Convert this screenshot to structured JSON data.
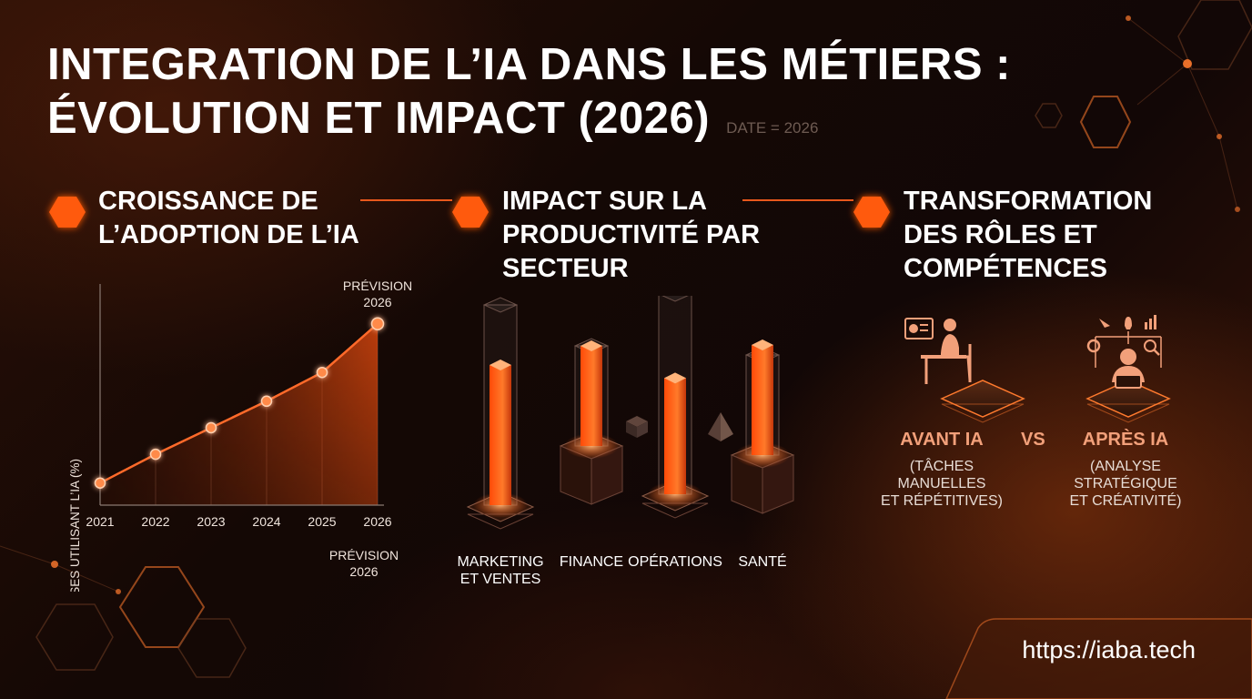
{
  "title": {
    "line1": "INTEGRATION DE L’IA DANS LES MÉTIERS :",
    "line2": "ÉVOLUTION ET IMPACT (2026)",
    "date_label": "DATE = 2026"
  },
  "sections": {
    "adoption": {
      "title_l1": "CROISSANCE DE",
      "title_l2": "L’ADOPTION DE L’IA"
    },
    "productivity": {
      "title_l1": "IMPACT SUR LA",
      "title_l2": "PRODUCTIVITÉ PAR",
      "title_l3": "SECTEUR"
    },
    "roles": {
      "title_l1": "TRANSFORMATION",
      "title_l2": "DES RÔLES ET",
      "title_l3": "COMPÉTENCES"
    }
  },
  "chart_data": [
    {
      "type": "area",
      "ylabel": "ENTREPRISES UTILISANT L’IA (%)",
      "x": [
        "2021",
        "2022",
        "2023",
        "2024",
        "2025",
        "2026"
      ],
      "y": [
        10,
        23,
        35,
        47,
        60,
        82
      ],
      "ylim": [
        0,
        100
      ],
      "annotation_top": {
        "l1": "PRÉVISION",
        "l2": "2026"
      },
      "annotation_bottom": {
        "l1": "PRÉVISION",
        "l2": "2026"
      },
      "grid": "vertical"
    },
    {
      "type": "bar",
      "categories": [
        {
          "l1": "MARKETING",
          "l2": "ET VENTES"
        },
        {
          "l1": "FINANCE",
          "l2": ""
        },
        {
          "l1": "OPÉRATIONS",
          "l2": ""
        },
        {
          "l1": "SANTÉ",
          "l2": ""
        }
      ],
      "values": [
        70,
        50,
        58,
        55
      ],
      "capacity": [
        100,
        50,
        100,
        50
      ],
      "ylim": [
        0,
        100
      ]
    }
  ],
  "roles": {
    "before": {
      "head": "AVANT IA",
      "l1": "(TÂCHES",
      "l2": "MANUELLES",
      "l3": "ET RÉPÉTITIVES)"
    },
    "vs": "VS",
    "after": {
      "head": "APRÈS IA",
      "l1": "(ANALYSE",
      "l2": "STRATÉGIQUE",
      "l3": "ET CRÉATIVITÉ)"
    }
  },
  "footer": {
    "url": "https://iaba.tech"
  },
  "colors": {
    "accent": "#ff6a1f",
    "accent_soft": "#f2a07a",
    "background": "#140805"
  }
}
